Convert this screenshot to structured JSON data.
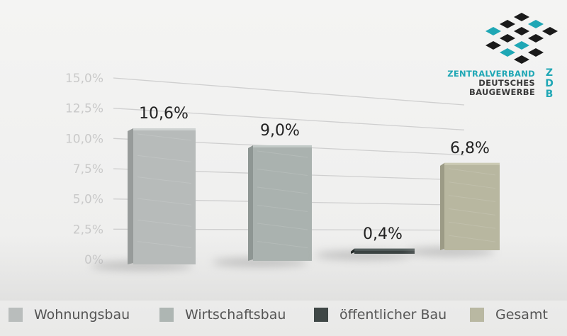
{
  "logo": {
    "line1": "ZENTRALVERBAND",
    "line2": "DEUTSCHES",
    "line3": "BAUGEWERBE",
    "abbr": [
      "Z",
      "D",
      "B"
    ],
    "accent_color": "#1fa7b5",
    "dark_color": "#1a1a1a"
  },
  "chart_data": {
    "type": "bar",
    "categories": [
      "Wohnungsbau",
      "Wirtschaftsbau",
      "öffentlicher Bau",
      "Gesamt"
    ],
    "values": [
      10.6,
      9.0,
      0.4,
      6.8
    ],
    "data_labels": [
      "10,6%",
      "9,0%",
      "0,4%",
      "6,8%"
    ],
    "yticks": [
      "0%",
      "2,5%",
      "5,0%",
      "7,5%",
      "10,0%",
      "12,5%",
      "15,0%"
    ],
    "ylim": [
      0,
      15
    ],
    "grid": true,
    "legend_position": "bottom",
    "colors": [
      "#b9bdbc",
      "#aeb6b3",
      "#3f4746",
      "#b9b8a2"
    ]
  }
}
